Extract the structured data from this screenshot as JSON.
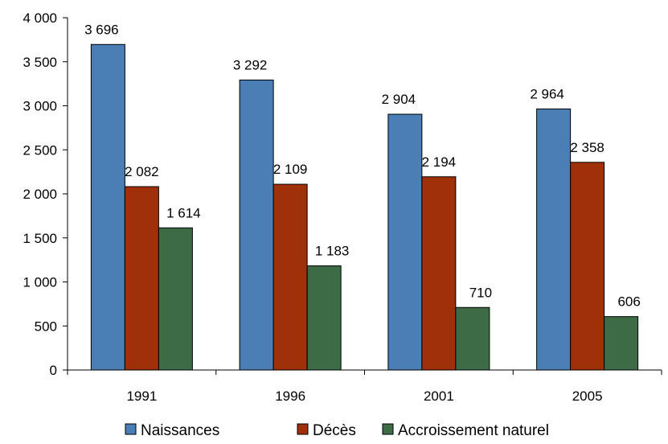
{
  "chart_data": {
    "type": "bar",
    "categories": [
      "1991",
      "1996",
      "2001",
      "2005"
    ],
    "series": [
      {
        "name": "Naissances",
        "color": "#4a7eb5",
        "values": [
          3696,
          3292,
          2904,
          2964
        ],
        "labels": [
          "3 696",
          "3 292",
          "2 904",
          "2 964"
        ]
      },
      {
        "name": "Décès",
        "color": "#a0300a",
        "values": [
          2082,
          2109,
          2194,
          2358
        ],
        "labels": [
          "2 082",
          "2 109",
          "2 194",
          "2 358"
        ]
      },
      {
        "name": "Accroissement naturel",
        "color": "#3d6b45",
        "values": [
          1614,
          1183,
          710,
          606
        ],
        "labels": [
          "1 614",
          "1 183",
          "710",
          "606"
        ]
      }
    ],
    "ylim": [
      0,
      4000
    ],
    "yticks": [
      0,
      500,
      1000,
      1500,
      2000,
      2500,
      3000,
      3500,
      4000
    ],
    "ytick_labels": [
      "0",
      "500",
      "1 000",
      "1 500",
      "2 000",
      "2 500",
      "3 000",
      "3 500",
      "4 000"
    ],
    "grid": false,
    "legend": "bottom",
    "title": "",
    "xlabel": "",
    "ylabel": ""
  }
}
